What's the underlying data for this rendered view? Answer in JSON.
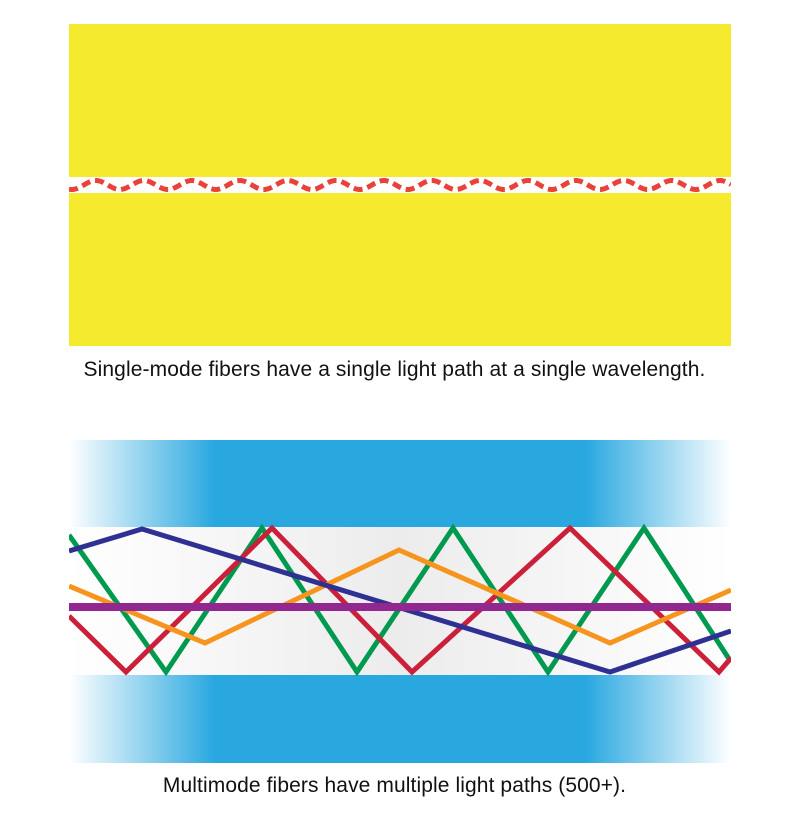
{
  "single_mode": {
    "caption": "Single-mode fibers have a single light path at a single wavelength.",
    "cladding_color": "#f6ea2e",
    "core_color": "#ffffff",
    "light_path_color": "#e8423a"
  },
  "multimode": {
    "caption": "Multimode fibers have multiple light paths (500+).",
    "cladding_color": "#29a8e0",
    "core_color": "#ececec",
    "light_paths": [
      {
        "color": "#009a4e"
      },
      {
        "color": "#cc1f3a"
      },
      {
        "color": "#f7941d"
      },
      {
        "color": "#2e3192"
      },
      {
        "color": "#92278f"
      }
    ]
  }
}
